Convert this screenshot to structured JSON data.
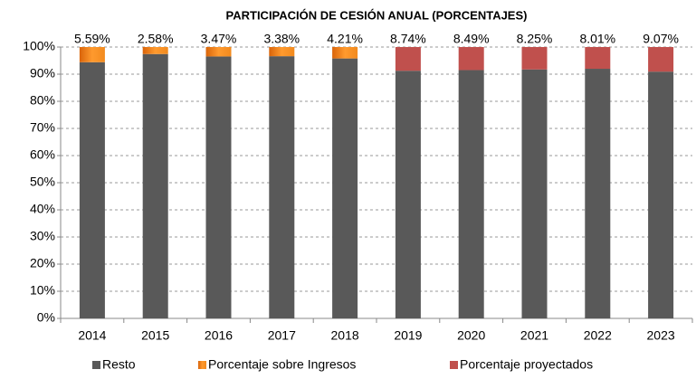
{
  "chart_data": {
    "type": "bar",
    "stacked": true,
    "title": "PARTICIPACIÓN DE CESIÓN ANUAL  (PORCENTAJES)",
    "categories": [
      "2014",
      "2015",
      "2016",
      "2017",
      "2018",
      "2019",
      "2020",
      "2021",
      "2022",
      "2023"
    ],
    "series": [
      {
        "name": "Resto",
        "color": "#595959",
        "values": [
          94.41,
          97.42,
          96.53,
          96.62,
          95.79,
          91.26,
          91.51,
          91.75,
          91.99,
          90.93
        ]
      },
      {
        "name": "Porcentaje sobre Ingresos",
        "color": "#f28a1e",
        "values": [
          5.59,
          2.58,
          3.47,
          3.38,
          4.21,
          null,
          null,
          null,
          null,
          null
        ],
        "value_labels": [
          "5.59%",
          "2.58%",
          "3.47%",
          "3.38%",
          "4.21%",
          null,
          null,
          null,
          null,
          null
        ]
      },
      {
        "name": "Porcentaje proyectados",
        "color": "#c0504d",
        "values": [
          null,
          null,
          null,
          null,
          null,
          8.74,
          8.49,
          8.25,
          8.01,
          9.07
        ],
        "value_labels": [
          null,
          null,
          null,
          null,
          null,
          "8.74%",
          "8.49%",
          "8.25%",
          "8.01%",
          "9.07%"
        ]
      }
    ],
    "ylim": [
      0,
      100
    ],
    "yticks": [
      {
        "value": 0,
        "label": "0%"
      },
      {
        "value": 10,
        "label": "10%"
      },
      {
        "value": 20,
        "label": "20%"
      },
      {
        "value": 30,
        "label": "30%"
      },
      {
        "value": 40,
        "label": "40%"
      },
      {
        "value": 50,
        "label": "50%"
      },
      {
        "value": 60,
        "label": "60%"
      },
      {
        "value": 70,
        "label": "70%"
      },
      {
        "value": 80,
        "label": "80%"
      },
      {
        "value": 90,
        "label": "90%"
      },
      {
        "value": 100,
        "label": "100%"
      }
    ],
    "grid": true,
    "legend": "bottom"
  }
}
